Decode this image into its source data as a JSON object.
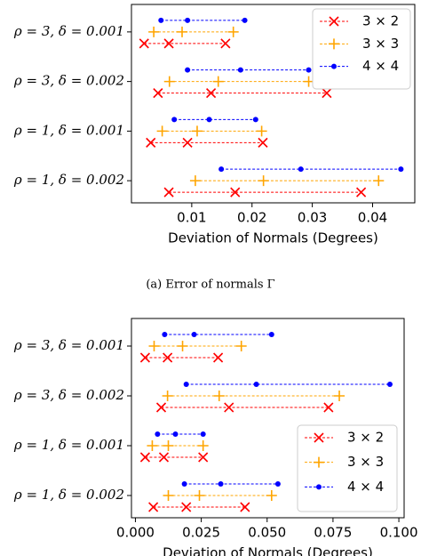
{
  "chart_data": [
    {
      "type": "range-dot",
      "caption": "(a) Error of normals Γ",
      "xlabel": "Deviation of Normals (Degrees)",
      "categories": [
        "ρ = 3, δ = 0.001",
        "ρ = 3, δ = 0.002",
        "ρ = 1, δ = 0.001",
        "ρ = 1, δ = 0.002"
      ],
      "series": [
        {
          "name": "3 × 2",
          "color": "red",
          "marker": "x",
          "values": [
            [
              0.0021,
              0.0062,
              0.0156
            ],
            [
              0.0044,
              0.0132,
              0.0324
            ],
            [
              0.0032,
              0.0093,
              0.0218
            ],
            [
              0.0062,
              0.0172,
              0.0381
            ]
          ]
        },
        {
          "name": "3 × 3",
          "color": "orange",
          "marker": "+",
          "values": [
            [
              0.0037,
              0.0084,
              0.0169
            ],
            [
              0.0063,
              0.0144,
              0.0294
            ],
            [
              0.0051,
              0.0109,
              0.0216
            ],
            [
              0.0106,
              0.0219,
              0.041
            ]
          ]
        },
        {
          "name": "4 × 4",
          "color": "blue",
          "marker": "o",
          "values": [
            [
              0.0049,
              0.0093,
              0.0188
            ],
            [
              0.0093,
              0.0181,
              0.0294
            ],
            [
              0.0071,
              0.0129,
              0.0206
            ],
            [
              0.0149,
              0.0281,
              0.0447
            ]
          ]
        }
      ],
      "xlim": [
        0,
        0.047
      ],
      "xticks": [
        0.01,
        0.02,
        0.03,
        0.04
      ],
      "legend": "upper right"
    },
    {
      "type": "range-dot",
      "xlabel": "Deviation of Normals (Degrees)",
      "categories": [
        "ρ = 3, δ = 0.001",
        "ρ = 3, δ = 0.002",
        "ρ = 1, δ = 0.001",
        "ρ = 1, δ = 0.002"
      ],
      "series": [
        {
          "name": "3 × 2",
          "color": "red",
          "marker": "x",
          "values": [
            [
              0.0037,
              0.0122,
              0.0314
            ],
            [
              0.0098,
              0.0355,
              0.0733
            ],
            [
              0.0037,
              0.0108,
              0.0257
            ],
            [
              0.0068,
              0.0193,
              0.0416
            ]
          ]
        },
        {
          "name": "3 × 3",
          "color": "orange",
          "marker": "+",
          "values": [
            [
              0.0071,
              0.0179,
              0.0402
            ],
            [
              0.0122,
              0.0318,
              0.0774
            ],
            [
              0.0064,
              0.0125,
              0.0257
            ],
            [
              0.0125,
              0.0243,
              0.0517
            ]
          ]
        },
        {
          "name": "4 × 4",
          "color": "blue",
          "marker": "o",
          "values": [
            [
              0.0111,
              0.0223,
              0.0517
            ],
            [
              0.0193,
              0.0459,
              0.0966
            ],
            [
              0.0084,
              0.0152,
              0.0257
            ],
            [
              0.0186,
              0.0324,
              0.0541
            ]
          ]
        }
      ],
      "xlim": [
        -0.0015,
        0.102
      ],
      "xticks": [
        {
          "value": 0,
          "label": "0.000"
        },
        0.025,
        {
          "value": 0.05,
          "label": "0.050"
        },
        0.075,
        {
          "value": 0.1,
          "label": "0.100"
        }
      ],
      "legend": "lower right"
    }
  ]
}
